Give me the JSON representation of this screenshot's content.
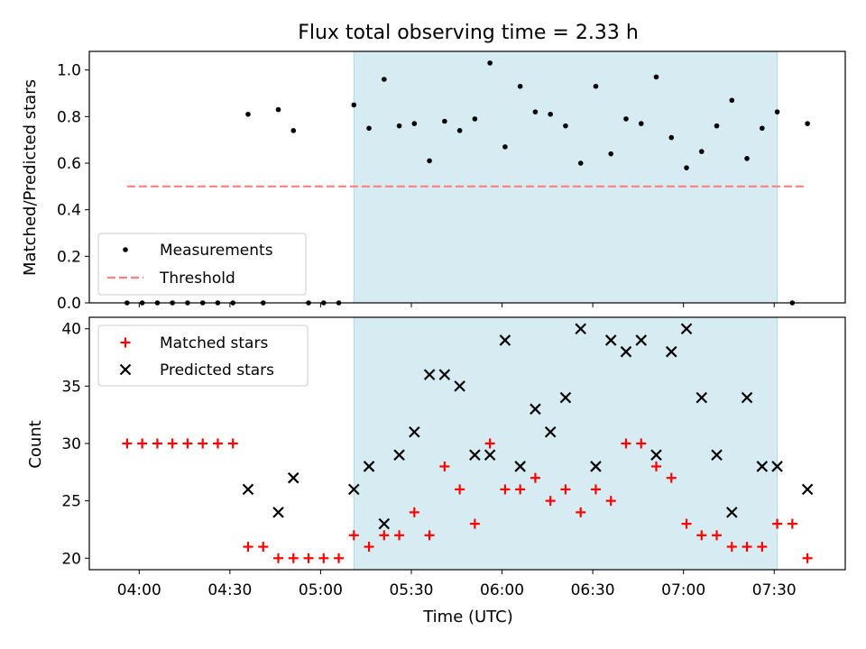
{
  "figure": {
    "title": "Flux total observing time = 2.33 h",
    "xlabel": "Time (UTC)"
  },
  "colors": {
    "shade": "#add8e6",
    "measurements": "#000000",
    "threshold": "#ff7f7f",
    "matched": "#ff0000",
    "predicted": "#000000"
  },
  "chart_data": [
    {
      "type": "scatter",
      "ylabel": "Matched/Predicted stars",
      "ylim": [
        0.0,
        1.08
      ],
      "yticks": [
        0.0,
        0.2,
        0.4,
        0.6,
        0.8,
        1.0
      ],
      "ytick_labels": [
        "0.0",
        "0.2",
        "0.4",
        "0.6",
        "0.8",
        "1.0"
      ],
      "shaded_interval": [
        "05:11",
        "07:31"
      ],
      "threshold": {
        "value": 0.5,
        "x": [
          "03:56",
          "07:41"
        ]
      },
      "legend": [
        "Measurements",
        "Threshold"
      ],
      "legend_position": "lower-left",
      "series": [
        {
          "name": "Measurements",
          "points": [
            [
              "03:56",
              0.0
            ],
            [
              "04:01",
              0.0
            ],
            [
              "04:06",
              0.0
            ],
            [
              "04:11",
              0.0
            ],
            [
              "04:16",
              0.0
            ],
            [
              "04:21",
              0.0
            ],
            [
              "04:26",
              0.0
            ],
            [
              "04:31",
              0.0
            ],
            [
              "04:36",
              0.81
            ],
            [
              "04:41",
              0.0
            ],
            [
              "04:46",
              0.83
            ],
            [
              "04:51",
              0.74
            ],
            [
              "04:56",
              0.0
            ],
            [
              "05:01",
              0.0
            ],
            [
              "05:06",
              0.0
            ],
            [
              "05:11",
              0.85
            ],
            [
              "05:16",
              0.75
            ],
            [
              "05:21",
              0.96
            ],
            [
              "05:26",
              0.76
            ],
            [
              "05:31",
              0.77
            ],
            [
              "05:36",
              0.61
            ],
            [
              "05:41",
              0.78
            ],
            [
              "05:46",
              0.74
            ],
            [
              "05:51",
              0.79
            ],
            [
              "05:56",
              1.03
            ],
            [
              "06:01",
              0.67
            ],
            [
              "06:06",
              0.93
            ],
            [
              "06:11",
              0.82
            ],
            [
              "06:16",
              0.81
            ],
            [
              "06:21",
              0.76
            ],
            [
              "06:26",
              0.6
            ],
            [
              "06:31",
              0.93
            ],
            [
              "06:36",
              0.64
            ],
            [
              "06:41",
              0.79
            ],
            [
              "06:46",
              0.77
            ],
            [
              "06:51",
              0.97
            ],
            [
              "06:56",
              0.71
            ],
            [
              "07:01",
              0.58
            ],
            [
              "07:06",
              0.65
            ],
            [
              "07:11",
              0.76
            ],
            [
              "07:16",
              0.87
            ],
            [
              "07:21",
              0.62
            ],
            [
              "07:26",
              0.75
            ],
            [
              "07:31",
              0.82
            ],
            [
              "07:36",
              0.0
            ],
            [
              "07:41",
              0.77
            ]
          ]
        }
      ]
    },
    {
      "type": "scatter",
      "ylabel": "Count",
      "xlabel": "Time (UTC)",
      "ylim": [
        19.0,
        41.0
      ],
      "yticks": [
        20,
        25,
        30,
        35,
        40
      ],
      "ytick_labels": [
        "20",
        "25",
        "30",
        "35",
        "40"
      ],
      "xticks": [
        "04:00",
        "04:30",
        "05:00",
        "05:30",
        "06:00",
        "06:30",
        "07:00",
        "07:30"
      ],
      "shaded_interval": [
        "05:11",
        "07:31"
      ],
      "legend": [
        "Matched stars",
        "Predicted stars"
      ],
      "legend_position": "upper-left",
      "series": [
        {
          "name": "Matched stars",
          "marker": "+",
          "points": [
            [
              "03:56",
              30
            ],
            [
              "04:01",
              30
            ],
            [
              "04:06",
              30
            ],
            [
              "04:11",
              30
            ],
            [
              "04:16",
              30
            ],
            [
              "04:21",
              30
            ],
            [
              "04:26",
              30
            ],
            [
              "04:31",
              30
            ],
            [
              "04:36",
              21
            ],
            [
              "04:41",
              21
            ],
            [
              "04:46",
              20
            ],
            [
              "04:51",
              20
            ],
            [
              "04:56",
              20
            ],
            [
              "05:01",
              20
            ],
            [
              "05:06",
              20
            ],
            [
              "05:11",
              22
            ],
            [
              "05:16",
              21
            ],
            [
              "05:21",
              22
            ],
            [
              "05:26",
              22
            ],
            [
              "05:31",
              24
            ],
            [
              "05:36",
              22
            ],
            [
              "05:41",
              28
            ],
            [
              "05:46",
              26
            ],
            [
              "05:51",
              23
            ],
            [
              "05:56",
              30
            ],
            [
              "06:01",
              26
            ],
            [
              "06:06",
              26
            ],
            [
              "06:11",
              27
            ],
            [
              "06:16",
              25
            ],
            [
              "06:21",
              26
            ],
            [
              "06:26",
              24
            ],
            [
              "06:31",
              26
            ],
            [
              "06:36",
              25
            ],
            [
              "06:41",
              30
            ],
            [
              "06:46",
              30
            ],
            [
              "06:51",
              28
            ],
            [
              "06:56",
              27
            ],
            [
              "07:01",
              23
            ],
            [
              "07:06",
              22
            ],
            [
              "07:11",
              22
            ],
            [
              "07:16",
              21
            ],
            [
              "07:21",
              21
            ],
            [
              "07:26",
              21
            ],
            [
              "07:31",
              23
            ],
            [
              "07:36",
              23
            ],
            [
              "07:41",
              20
            ]
          ]
        },
        {
          "name": "Predicted stars",
          "marker": "x",
          "points": [
            [
              "04:36",
              26
            ],
            [
              "04:46",
              24
            ],
            [
              "04:51",
              27
            ],
            [
              "05:11",
              26
            ],
            [
              "05:16",
              28
            ],
            [
              "05:21",
              23
            ],
            [
              "05:26",
              29
            ],
            [
              "05:31",
              31
            ],
            [
              "05:36",
              36
            ],
            [
              "05:41",
              36
            ],
            [
              "05:46",
              35
            ],
            [
              "05:51",
              29
            ],
            [
              "05:56",
              29
            ],
            [
              "06:01",
              39
            ],
            [
              "06:06",
              28
            ],
            [
              "06:11",
              33
            ],
            [
              "06:16",
              31
            ],
            [
              "06:21",
              34
            ],
            [
              "06:26",
              40
            ],
            [
              "06:31",
              28
            ],
            [
              "06:36",
              39
            ],
            [
              "06:41",
              38
            ],
            [
              "06:46",
              39
            ],
            [
              "06:51",
              29
            ],
            [
              "06:56",
              38
            ],
            [
              "07:01",
              40
            ],
            [
              "07:06",
              34
            ],
            [
              "07:11",
              29
            ],
            [
              "07:16",
              24
            ],
            [
              "07:21",
              34
            ],
            [
              "07:26",
              28
            ],
            [
              "07:31",
              28
            ],
            [
              "07:41",
              26
            ]
          ]
        }
      ]
    }
  ]
}
